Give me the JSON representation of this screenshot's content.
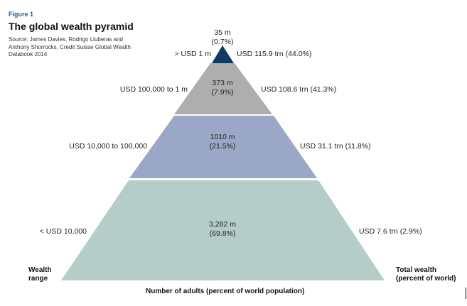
{
  "figure": {
    "label": "Figure 1",
    "title": "The global wealth pyramid",
    "source_lines": [
      "Source: James Davies, Rodrigo Lluberas and",
      "Anthony Shorrocks, Credit Suisse Global Wealth",
      "Databook 2014"
    ]
  },
  "colors": {
    "tier_top": "#0f3a63",
    "tier_upper": "#aeaeae",
    "tier_middle": "#9aa7c7",
    "tier_base": "#b4cdc8",
    "figure_label": "#1f5f9a"
  },
  "tiers": [
    {
      "wealth_range": "> USD 1 m",
      "adults": "35 m",
      "share": "(0.7%)",
      "total_wealth": "USD 115.9 trn (44.0%)"
    },
    {
      "wealth_range": "USD 100,000 to 1 m",
      "adults": "373 m",
      "share": "(7.9%)",
      "total_wealth": "USD 108.6 trn (41.3%)"
    },
    {
      "wealth_range": "USD 10,000 to 100,000",
      "adults": "1010 m",
      "share": "(21.5%)",
      "total_wealth": "USD 31.1 trn (11.8%)"
    },
    {
      "wealth_range": "< USD 10,000",
      "adults": "3,282 m",
      "share": "(69.8%)",
      "total_wealth": "USD 7.6 trn (2.9%)"
    }
  ],
  "axes": {
    "left_title_line1": "Wealth",
    "left_title_line2": "range",
    "right_title_line1": "Total wealth",
    "right_title_line2": "(percent of world)",
    "bottom_title": "Number of adults (percent of world population)"
  }
}
